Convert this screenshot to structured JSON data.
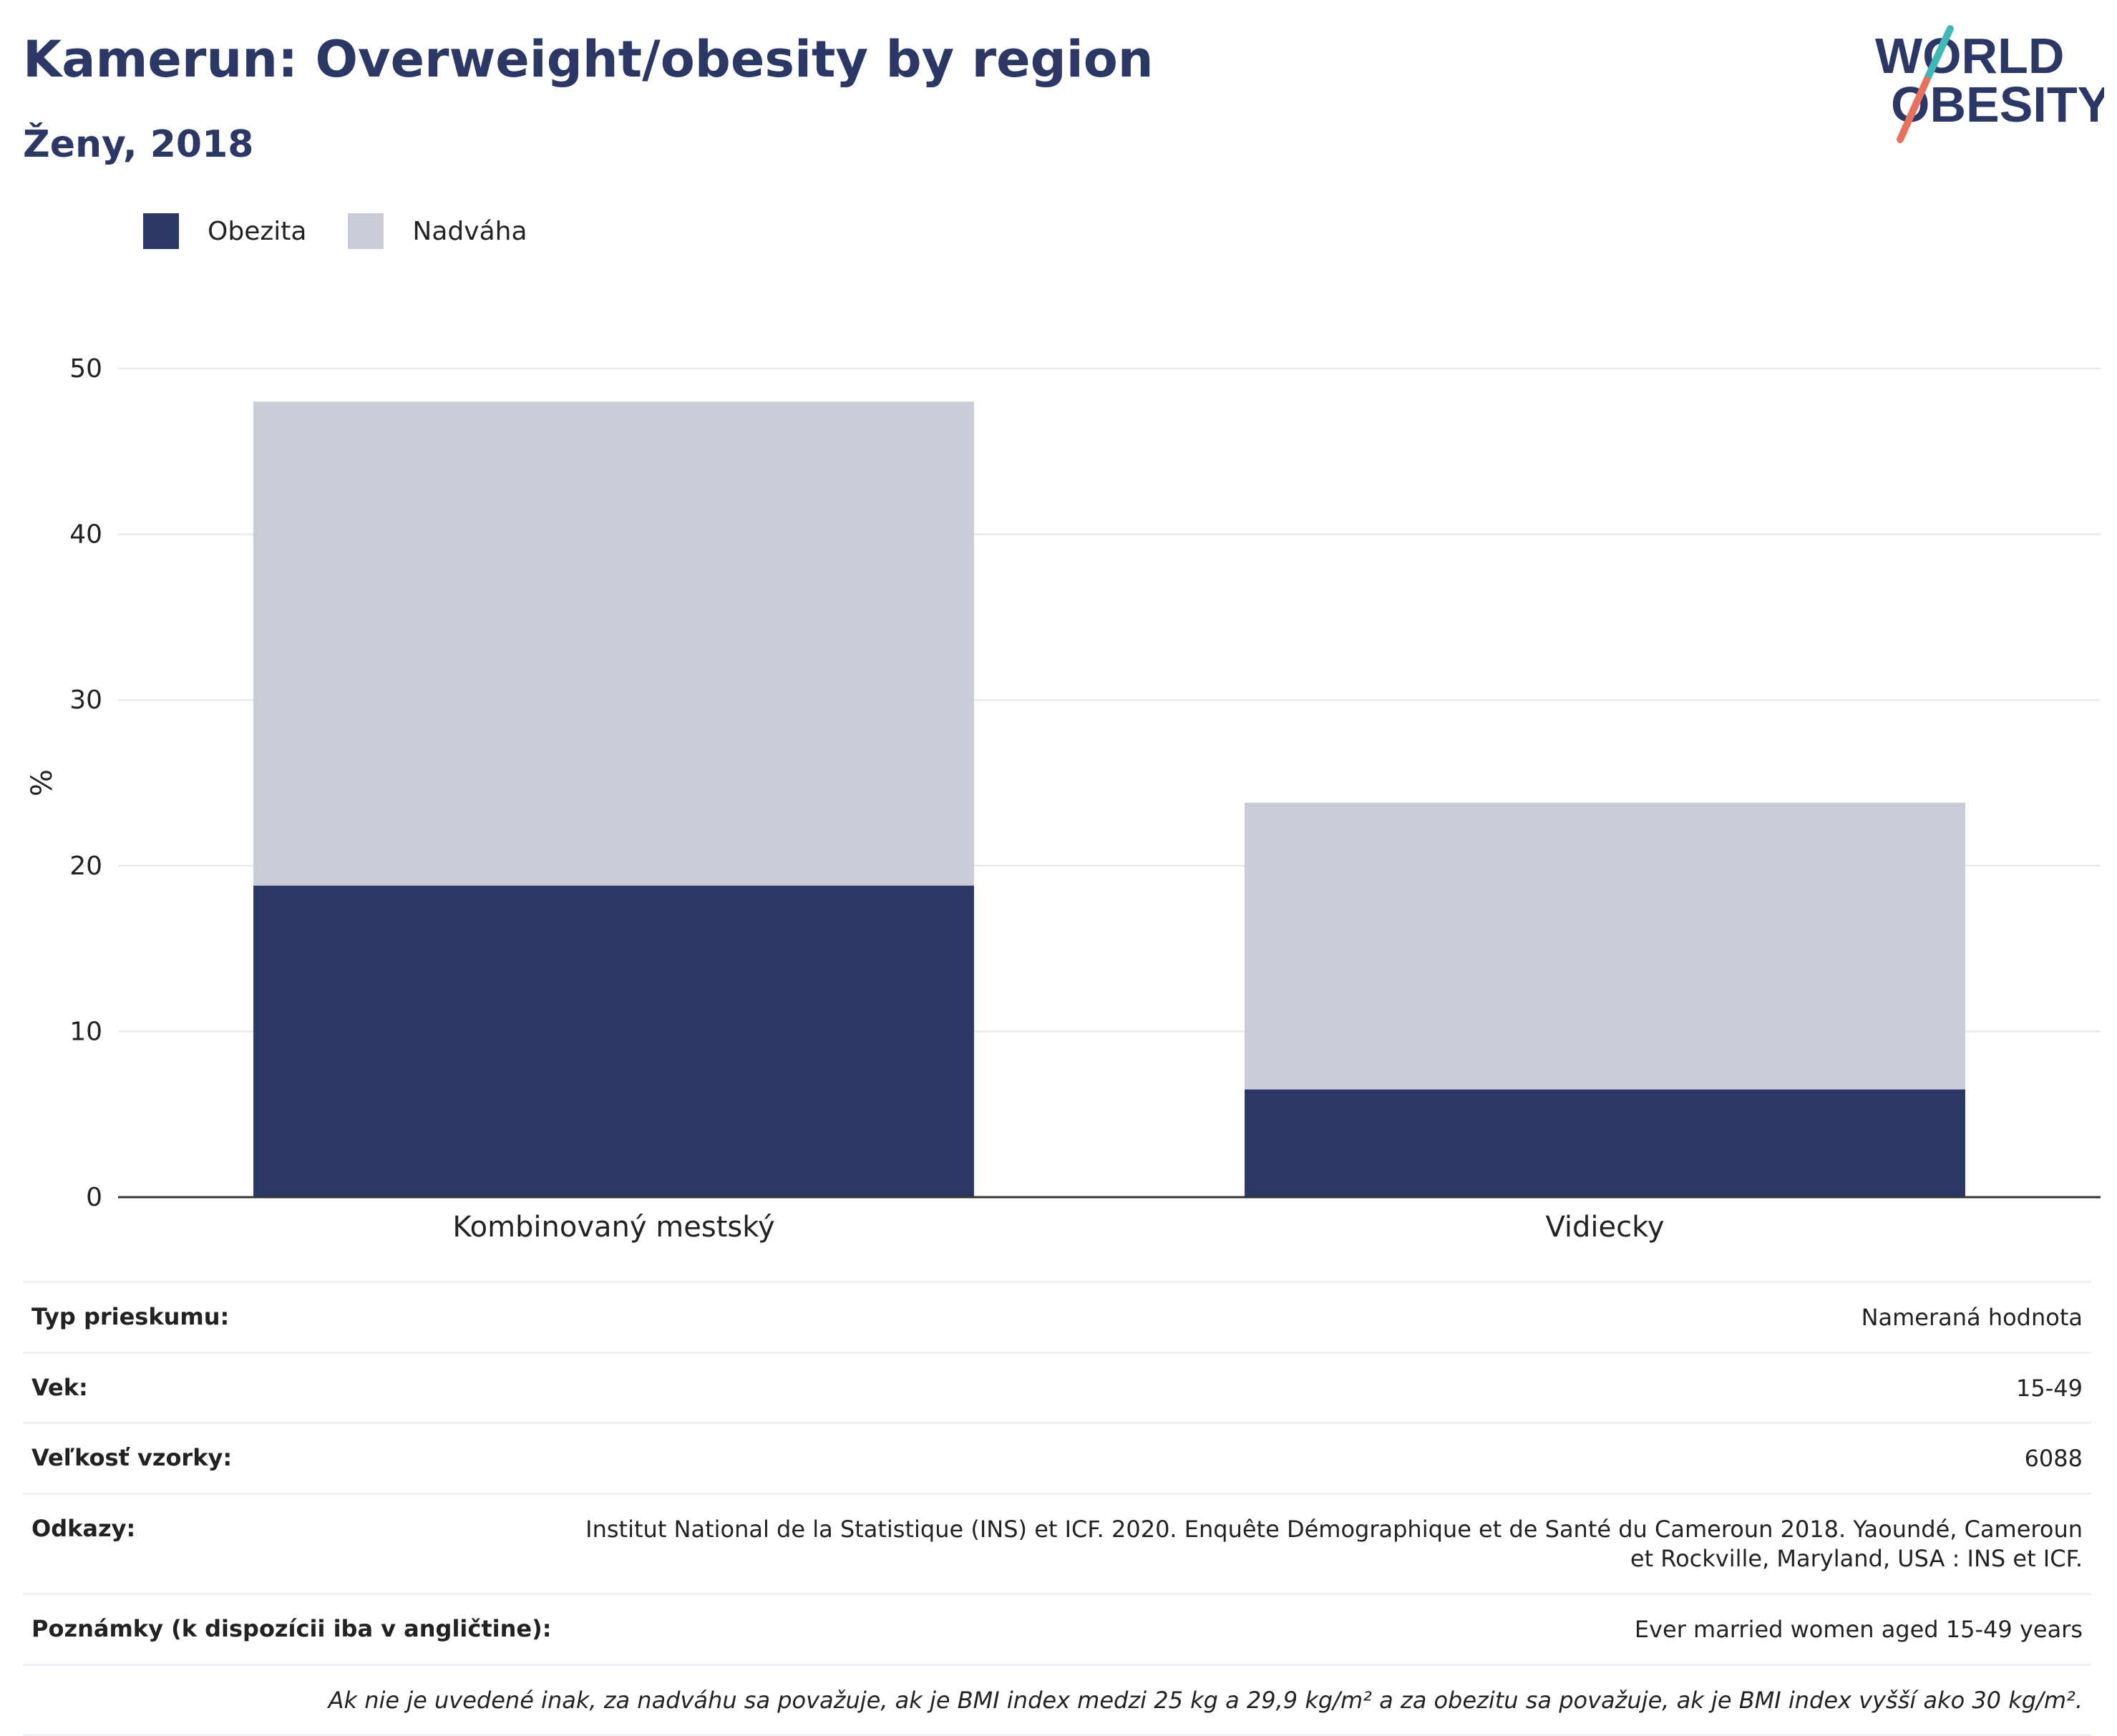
{
  "header": {
    "title": "Kamerun: Overweight/obesity by region",
    "subtitle": "Ženy, 2018"
  },
  "logo": {
    "line1": "WORLD",
    "line2": "OBESITY",
    "text_color": "#2b3765",
    "slash_colors": [
      "#3fb9b5",
      "#e8715e"
    ]
  },
  "legend": [
    {
      "label": "Obezita",
      "color": "#2b3765"
    },
    {
      "label": "Nadváha",
      "color": "#c9ccd7"
    }
  ],
  "chart_data": {
    "type": "bar",
    "stacked": true,
    "categories": [
      "Kombinovaný mestský",
      "Vidiecky"
    ],
    "series": [
      {
        "name": "Obezita",
        "values": [
          18.8,
          6.5
        ],
        "color": "#2b3765"
      },
      {
        "name": "Nadváha",
        "values": [
          29.2,
          17.3
        ],
        "color": "#c9ccd7"
      }
    ],
    "ylabel": "%",
    "ylim": [
      0,
      50
    ],
    "yticks": [
      0,
      10,
      20,
      30,
      40,
      50
    ],
    "grid": true,
    "legend_position": "top-left"
  },
  "info": [
    {
      "label": "Typ prieskumu:",
      "value": "Nameraná hodnota"
    },
    {
      "label": "Vek:",
      "value": "15-49"
    },
    {
      "label": "Veľkosť vzorky:",
      "value": "6088"
    },
    {
      "label": "Odkazy:",
      "value": "Institut National de la Statistique (INS) et ICF. 2020. Enquête Démographique et de Santé du Cameroun 2018. Yaoundé, Cameroun et Rockville, Maryland, USA : INS et ICF."
    },
    {
      "label": "Poznámky (k dispozícii iba v angličtine):",
      "value": "Ever married women aged 15-49 years"
    }
  ],
  "footnote": "Ak nie je uvedené inak, za nadváhu sa považuje, ak je BMI index medzi 25 kg a 29,9 kg/m² a za obezitu sa považuje, ak je BMI index vyšší ako 30 kg/m²."
}
